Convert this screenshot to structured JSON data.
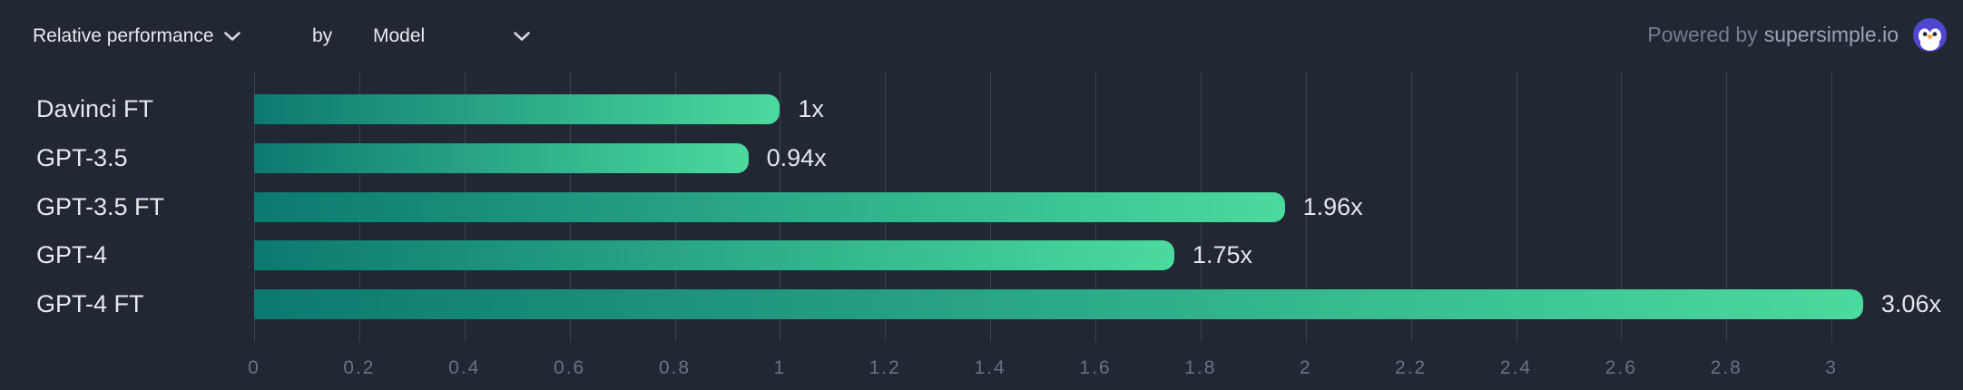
{
  "header": {
    "metric_dropdown": {
      "label": "Relative performance"
    },
    "by_label": "by",
    "dimension_dropdown": {
      "label": "Model"
    },
    "powered_by": {
      "prefix": "Powered by",
      "brand": "supersimple.io"
    }
  },
  "chart_data": {
    "type": "bar",
    "orientation": "horizontal",
    "title": "Relative performance by Model",
    "categories": [
      "Davinci FT",
      "GPT-3.5",
      "GPT-3.5 FT",
      "GPT-4",
      "GPT-4 FT"
    ],
    "values": [
      1,
      0.94,
      1.96,
      1.75,
      3.06
    ],
    "value_labels": [
      "1x",
      "0.94x",
      "1.96x",
      "1.75x",
      "3.06x"
    ],
    "xlabel": "",
    "ylabel": "Model",
    "xlim": [
      0,
      3.25
    ],
    "x_ticks": [
      0,
      0.2,
      0.4,
      0.6,
      0.8,
      1,
      1.2,
      1.4,
      1.6,
      1.8,
      2,
      2.2,
      2.4,
      2.6,
      2.8,
      3
    ],
    "x_tick_labels": [
      "0",
      "0.2",
      "0.4",
      "0.6",
      "0.8",
      "1",
      "1.2",
      "1.4",
      "1.6",
      "1.8",
      "2",
      "2.2",
      "2.4",
      "2.6",
      "2.8",
      "3"
    ],
    "grid": true,
    "legend": false,
    "bar_gradient": {
      "start": "#0C7970",
      "end": "#4BDA9E"
    }
  },
  "colors": {
    "background": "#212733",
    "gridline": "#3C4250",
    "tick_label": "#6B7183",
    "category_label": "#E5E8EE",
    "value_label": "#E3E6EC",
    "header_text": "#E8EAF0",
    "powered_by_text": "#757C8C",
    "brand_text": "#9CA3B3",
    "logo_background": "#4E46CF",
    "logo_beak": "#F6A33C"
  }
}
